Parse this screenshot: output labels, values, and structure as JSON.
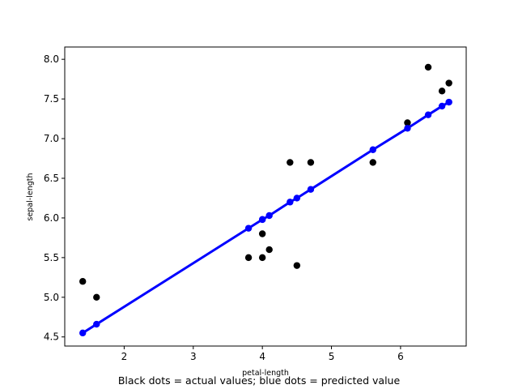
{
  "chart_data": {
    "type": "scatter",
    "title": "",
    "xlabel": "petal-length",
    "ylabel": "sepal-length",
    "caption": "Black dots = actual values; blue dots = predicted value",
    "xlim": [
      1.14,
      6.95
    ],
    "ylim": [
      4.385,
      8.155
    ],
    "xticks": [
      2,
      3,
      4,
      5,
      6
    ],
    "yticks": [
      4.5,
      5.0,
      5.5,
      6.0,
      6.5,
      7.0,
      7.5,
      8.0
    ],
    "xtick_labels": [
      "2",
      "3",
      "4",
      "5",
      "6"
    ],
    "ytick_labels": [
      "4.5",
      "5.0",
      "5.5",
      "6.0",
      "6.5",
      "7.0",
      "7.5",
      "8.0"
    ],
    "grid": false,
    "series": [
      {
        "kind": "scatter",
        "color": "#000000",
        "points": [
          [
            1.4,
            5.2
          ],
          [
            1.6,
            5.0
          ],
          [
            3.8,
            5.5
          ],
          [
            4.0,
            5.5
          ],
          [
            4.0,
            5.8
          ],
          [
            4.1,
            5.6
          ],
          [
            4.4,
            6.7
          ],
          [
            4.5,
            5.4
          ],
          [
            4.7,
            6.7
          ],
          [
            5.6,
            6.7
          ],
          [
            6.1,
            7.2
          ],
          [
            6.4,
            7.9
          ],
          [
            6.6,
            7.6
          ],
          [
            6.7,
            7.7
          ]
        ]
      },
      {
        "kind": "line+scatter",
        "color": "#0000ff",
        "points": [
          [
            1.4,
            4.55
          ],
          [
            1.6,
            4.66
          ],
          [
            3.8,
            5.87
          ],
          [
            4.0,
            5.98
          ],
          [
            4.0,
            5.98
          ],
          [
            4.1,
            6.03
          ],
          [
            4.4,
            6.2
          ],
          [
            4.5,
            6.25
          ],
          [
            4.7,
            6.36
          ],
          [
            5.6,
            6.86
          ],
          [
            6.1,
            7.13
          ],
          [
            6.4,
            7.3
          ],
          [
            6.6,
            7.41
          ],
          [
            6.7,
            7.46
          ]
        ]
      }
    ]
  }
}
